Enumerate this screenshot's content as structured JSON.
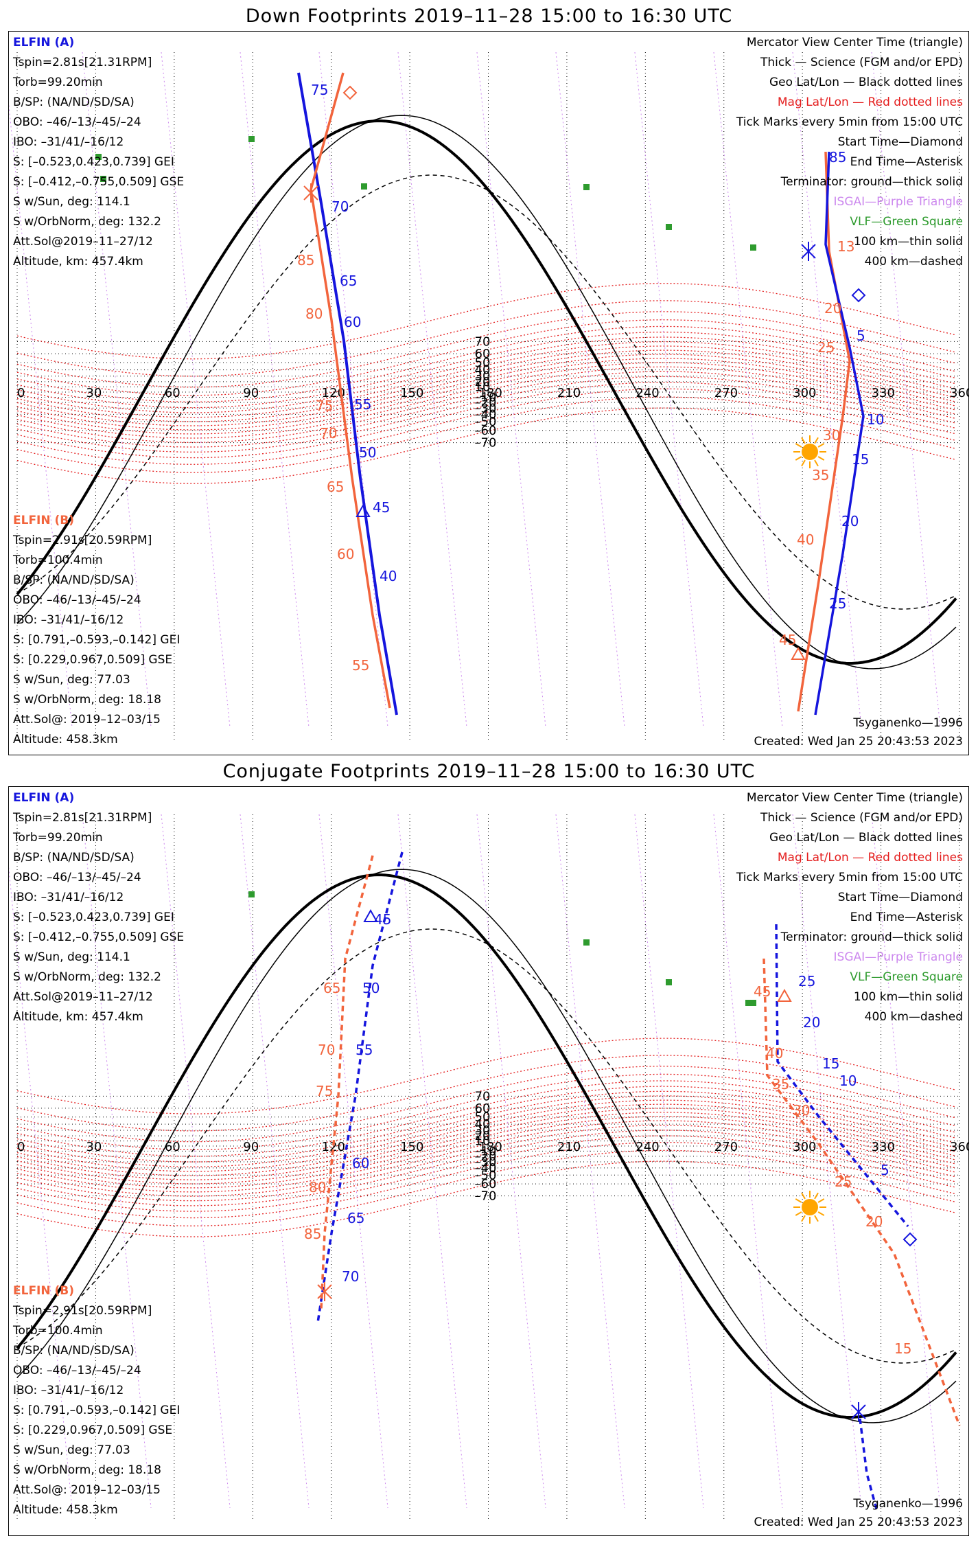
{
  "colors": {
    "elfin_a": "#1515dd",
    "elfin_b": "#f2643c",
    "geo_grid": "#000000",
    "mag_grid": "#e41c1c",
    "isgai": "#cc88ee",
    "vlf": "#2e9b2e",
    "sun": "#ffa500"
  },
  "panels": [
    {
      "title": "Down Footprints 2019–11–28 15:00 to 16:30 UTC",
      "footer_left": "",
      "footer_right": "Tsyganenko—1996",
      "created": "Created: Wed Jan 25 20:43:53 2023"
    },
    {
      "title": "Conjugate Footprints 2019–11–28 15:00 to 16:30 UTC",
      "footer_left": "",
      "footer_right": "Tsyganenko—1996",
      "created": "Created: Wed Jan 25 20:43:53 2023"
    }
  ],
  "elfin_a": {
    "header": "ELFIN (A)",
    "lines": [
      "Tspin=2.81s[21.31RPM]",
      "Torb=99.20min",
      "B/SP: (NA/ND/SD/SA)",
      "OBO: –46/–13/–45/–24",
      "IBO: –31/41/–16/12",
      "S: [–0.523,0.423,0.739] GEI",
      "S: [–0.412,–0.755,0.509] GSE",
      "S w/Sun, deg: 114.1",
      "S w/OrbNorm, deg: 132.2",
      "Att.Sol@2019–11–27/12",
      "Altitude, km: 457.4km"
    ]
  },
  "elfin_b": {
    "header": "ELFIN (B)",
    "lines": [
      "Tspin=2.91s[20.59RPM]",
      "Torb=100.4min",
      "B/SP: (NA/ND/SD/SA)",
      "OBO: –46/–13/–45/–24",
      "IBO: –31/41/–16/12",
      "S: [0.791,–0.593,–0.142] GEI",
      "S: [0.229,0.967,0.509] GSE",
      "S w/Sun, deg: 77.03",
      "S w/OrbNorm, deg: 18.18",
      "Att.Sol@: 2019–12–03/15",
      "Altitude: 458.3km"
    ]
  },
  "legend": [
    {
      "text": "Mercator View Center Time (triangle)",
      "color": "#000000"
    },
    {
      "text": "Thick — Science (FGM and/or EPD)",
      "color": "#000000"
    },
    {
      "text": "Geo Lat/Lon — Black dotted lines",
      "color": "#000000"
    },
    {
      "text": "Mag Lat/Lon — Red dotted lines",
      "color": "#e41c1c"
    },
    {
      "text": "Tick Marks every 5min from 15:00 UTC",
      "color": "#000000"
    },
    {
      "text": "Start Time—Diamond",
      "color": "#000000"
    },
    {
      "text": "End Time—Asterisk",
      "color": "#000000"
    },
    {
      "text": "Terminator: ground—thick solid",
      "color": "#000000"
    },
    {
      "text": "ISGAI—Purple Triangle",
      "color": "#cc88ee"
    },
    {
      "text": "VLF—Green Square",
      "color": "#2e9b2e"
    },
    {
      "text": "100 km—thin solid",
      "color": "#000000"
    },
    {
      "text": "400 km—dashed",
      "color": "#000000"
    }
  ],
  "map": {
    "lon_labels": [
      "0",
      "30",
      "60",
      "90",
      "120",
      "150",
      "180",
      "210",
      "240",
      "270",
      "300",
      "330",
      "360"
    ],
    "lat_labels": [
      "70",
      "60",
      "50",
      "40",
      "30",
      "20",
      "10",
      "–10",
      "–20",
      "–30",
      "–40",
      "–50",
      "–60",
      "–70"
    ]
  },
  "down_track_labels": {
    "a": [
      "75",
      "70",
      "65",
      "60",
      "55",
      "50",
      "45",
      "40",
      "85",
      "5",
      "10",
      "15",
      "20",
      "25"
    ],
    "b": [
      "85",
      "80",
      "75",
      "70",
      "65",
      "60",
      "55",
      "13",
      "20",
      "25",
      "30",
      "35",
      "40",
      "45"
    ]
  },
  "conj_track_labels": {
    "a": [
      "45",
      "50",
      "55",
      "60",
      "65",
      "70",
      "25",
      "20",
      "15",
      "10",
      "5"
    ],
    "b": [
      "65",
      "70",
      "75",
      "80",
      "85",
      "45",
      "40",
      "35",
      "30",
      "25",
      "20",
      "15"
    ]
  }
}
